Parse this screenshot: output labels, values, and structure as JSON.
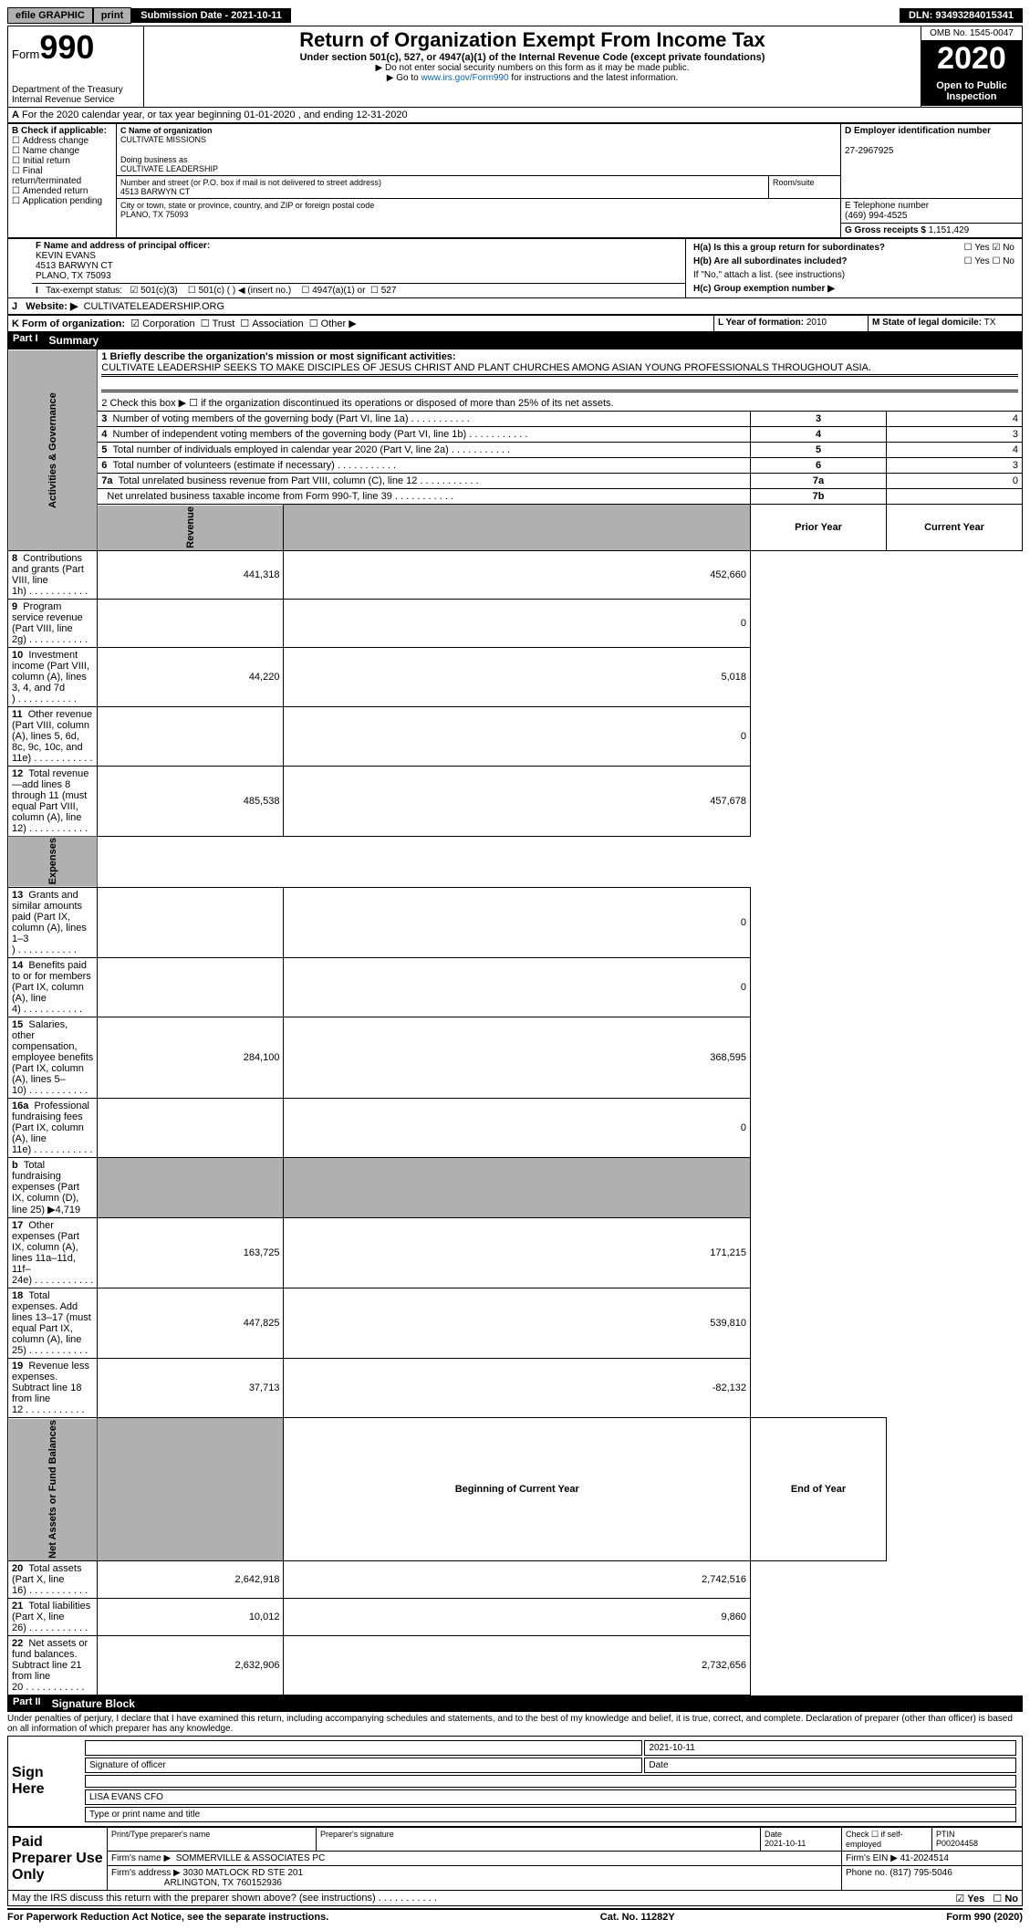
{
  "topbar": {
    "efile": "efile GRAPHIC",
    "print": "print",
    "sub_date_label": "Submission Date - 2021-10-11",
    "dln": "DLN: 93493284015341"
  },
  "header": {
    "form_word": "Form",
    "form_num": "990",
    "dept": "Department of the Treasury\nInternal Revenue Service",
    "title": "Return of Organization Exempt From Income Tax",
    "subtitle": "Under section 501(c), 527, or 4947(a)(1) of the Internal Revenue Code (except private foundations)",
    "instr1": "▶ Do not enter social security numbers on this form as it may be made public.",
    "instr2_pre": "▶ Go to ",
    "instr2_link": "www.irs.gov/Form990",
    "instr2_post": " for instructions and the latest information.",
    "omb": "OMB No. 1545-0047",
    "year": "2020",
    "open": "Open to Public Inspection"
  },
  "periodA": "For the 2020 calendar year, or tax year beginning 01-01-2020    , and ending 12-31-2020",
  "boxB": {
    "label": "B Check if applicable:",
    "opts": [
      "Address change",
      "Name change",
      "Initial return",
      "Final return/terminated",
      "Amended return",
      "Application pending"
    ]
  },
  "boxC": {
    "name_label": "C Name of organization",
    "name": "CULTIVATE MISSIONS",
    "dba_label": "Doing business as",
    "dba": "CULTIVATE LEADERSHIP",
    "addr_label": "Number and street (or P.O. box if mail is not delivered to street address)",
    "room_label": "Room/suite",
    "addr": "4513 BARWYN CT",
    "city_label": "City or town, state or province, country, and ZIP or foreign postal code",
    "city": "PLANO, TX  75093"
  },
  "boxD": {
    "label": "D Employer identification number",
    "val": "27-2967925"
  },
  "boxE": {
    "label": "E Telephone number",
    "val": "(469) 994-4525"
  },
  "boxG": {
    "label": "G Gross receipts $",
    "val": "1,151,429"
  },
  "boxF": {
    "label": "F Name and address of principal officer:",
    "name": "KEVIN EVANS",
    "addr1": "4513 BARWYN CT",
    "addr2": "PLANO, TX  75093"
  },
  "boxH": {
    "a": "H(a)  Is this a group return for subordinates?",
    "b": "H(b)  Are all subordinates included?",
    "b_note": "If \"No,\" attach a list. (see instructions)",
    "c": "H(c)  Group exemption number ▶",
    "yes": "Yes",
    "no": "No"
  },
  "rowI": {
    "label": "Tax-exempt status:",
    "o1": "501(c)(3)",
    "o2": "501(c) (  ) ◀ (insert no.)",
    "o3": "4947(a)(1) or",
    "o4": "527"
  },
  "rowJ": {
    "label": "Website: ▶",
    "val": "CULTIVATELEADERSHIP.ORG"
  },
  "rowK": {
    "label": "K Form of organization:",
    "o1": "Corporation",
    "o2": "Trust",
    "o3": "Association",
    "o4": "Other ▶"
  },
  "rowL": {
    "label": "L Year of formation:",
    "val": "2010"
  },
  "rowM": {
    "label": "M State of legal domicile:",
    "val": "TX"
  },
  "part1": {
    "hdr": "Part I",
    "title": "Summary",
    "l1_label": "1  Briefly describe the organization's mission or most significant activities:",
    "l1_text": "CULTIVATE LEADERSHIP SEEKS TO MAKE DISCIPLES OF JESUS CHRIST AND PLANT CHURCHES AMONG ASIAN YOUNG PROFESSIONALS THROUGHOUT ASIA.",
    "l2": "2   Check this box ▶ ☐  if the organization discontinued its operations or disposed of more than 25% of its net assets.",
    "tabs": {
      "gov": "Activities & Governance",
      "rev": "Revenue",
      "exp": "Expenses",
      "net": "Net Assets or Fund Balances"
    },
    "hdr_prior": "Prior Year",
    "hdr_curr": "Current Year",
    "hdr_beg": "Beginning of Current Year",
    "hdr_end": "End of Year",
    "gov_lines": [
      {
        "n": "3",
        "t": "Number of voting members of the governing body (Part VI, line 1a)",
        "box": "3",
        "v": "4"
      },
      {
        "n": "4",
        "t": "Number of independent voting members of the governing body (Part VI, line 1b)",
        "box": "4",
        "v": "3"
      },
      {
        "n": "5",
        "t": "Total number of individuals employed in calendar year 2020 (Part V, line 2a)",
        "box": "5",
        "v": "4"
      },
      {
        "n": "6",
        "t": "Total number of volunteers (estimate if necessary)",
        "box": "6",
        "v": "3"
      },
      {
        "n": "7a",
        "t": "Total unrelated business revenue from Part VIII, column (C), line 12",
        "box": "7a",
        "v": "0"
      },
      {
        "n": "",
        "t": "Net unrelated business taxable income from Form 990-T, line 39",
        "box": "7b",
        "v": ""
      }
    ],
    "rev_lines": [
      {
        "n": "8",
        "t": "Contributions and grants (Part VIII, line 1h)",
        "p": "441,318",
        "c": "452,660"
      },
      {
        "n": "9",
        "t": "Program service revenue (Part VIII, line 2g)",
        "p": "",
        "c": "0"
      },
      {
        "n": "10",
        "t": "Investment income (Part VIII, column (A), lines 3, 4, and 7d )",
        "p": "44,220",
        "c": "5,018"
      },
      {
        "n": "11",
        "t": "Other revenue (Part VIII, column (A), lines 5, 6d, 8c, 9c, 10c, and 11e)",
        "p": "",
        "c": "0"
      },
      {
        "n": "12",
        "t": "Total revenue—add lines 8 through 11 (must equal Part VIII, column (A), line 12)",
        "p": "485,538",
        "c": "457,678"
      }
    ],
    "exp_lines": [
      {
        "n": "13",
        "t": "Grants and similar amounts paid (Part IX, column (A), lines 1–3 )",
        "p": "",
        "c": "0"
      },
      {
        "n": "14",
        "t": "Benefits paid to or for members (Part IX, column (A), line 4)",
        "p": "",
        "c": "0"
      },
      {
        "n": "15",
        "t": "Salaries, other compensation, employee benefits (Part IX, column (A), lines 5–10)",
        "p": "284,100",
        "c": "368,595"
      },
      {
        "n": "16a",
        "t": "Professional fundraising fees (Part IX, column (A), line 11e)",
        "p": "",
        "c": "0"
      },
      {
        "n": "b",
        "t": "Total fundraising expenses (Part IX, column (D), line 25) ▶4,719",
        "p": "SHADE",
        "c": "SHADE"
      },
      {
        "n": "17",
        "t": "Other expenses (Part IX, column (A), lines 11a–11d, 11f–24e)",
        "p": "163,725",
        "c": "171,215"
      },
      {
        "n": "18",
        "t": "Total expenses. Add lines 13–17 (must equal Part IX, column (A), line 25)",
        "p": "447,825",
        "c": "539,810"
      },
      {
        "n": "19",
        "t": "Revenue less expenses. Subtract line 18 from line 12",
        "p": "37,713",
        "c": "-82,132"
      }
    ],
    "net_lines": [
      {
        "n": "20",
        "t": "Total assets (Part X, line 16)",
        "p": "2,642,918",
        "c": "2,742,516"
      },
      {
        "n": "21",
        "t": "Total liabilities (Part X, line 26)",
        "p": "10,012",
        "c": "9,860"
      },
      {
        "n": "22",
        "t": "Net assets or fund balances. Subtract line 21 from line 20",
        "p": "2,632,906",
        "c": "2,732,656"
      }
    ]
  },
  "part2": {
    "hdr": "Part II",
    "title": "Signature Block",
    "decl": "Under penalties of perjury, I declare that I have examined this return, including accompanying schedules and statements, and to the best of my knowledge and belief, it is true, correct, and complete. Declaration of preparer (other than officer) is based on all information of which preparer has any knowledge.",
    "sign_here": "Sign Here",
    "sig_officer": "Signature of officer",
    "sig_date": "Date",
    "sig_date_val": "2021-10-11",
    "officer_line": "LISA EVANS CFO",
    "officer_label": "Type or print name and title",
    "paid": "Paid Preparer Use Only",
    "prep_name": "Print/Type preparer's name",
    "prep_sig": "Preparer's signature",
    "prep_date": "Date",
    "prep_date_val": "2021-10-11",
    "prep_check": "Check ☐ if self-employed",
    "ptin_label": "PTIN",
    "ptin": "P00204458",
    "firm_name_label": "Firm's name      ▶",
    "firm_name": "SOMMERVILLE & ASSOCIATES PC",
    "firm_ein_label": "Firm's EIN ▶",
    "firm_ein": "41-2024514",
    "firm_addr_label": "Firm's address ▶",
    "firm_addr1": "3030 MATLOCK RD STE 201",
    "firm_addr2": "ARLINGTON, TX  760152936",
    "phone_label": "Phone no.",
    "phone": "(817) 795-5046",
    "discuss": "May the IRS discuss this return with the preparer shown above? (see instructions)",
    "yes": "Yes",
    "no": "No"
  },
  "footer": {
    "pra": "For Paperwork Reduction Act Notice, see the separate instructions.",
    "cat": "Cat. No. 11282Y",
    "form": "Form 990 (2020)"
  }
}
